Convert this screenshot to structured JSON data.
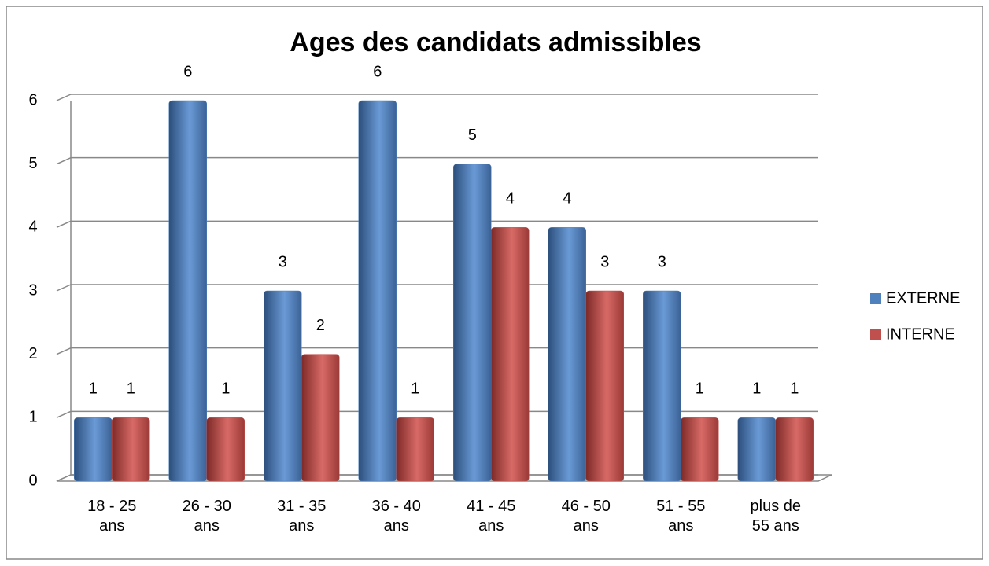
{
  "chart_data": {
    "type": "bar",
    "title": "Ages des candidats  admissibles",
    "categories": [
      "18 - 25 ans",
      "26 - 30 ans",
      "31 - 35 ans",
      "36 - 40 ans",
      "41 - 45 ans",
      "46 - 50 ans",
      "51 - 55 ans",
      "plus de 55 ans"
    ],
    "series": [
      {
        "name": "EXTERNE",
        "color": "#4f81bd",
        "values": [
          1,
          6,
          3,
          6,
          5,
          4,
          3,
          1
        ]
      },
      {
        "name": "INTERNE",
        "color": "#c0504d",
        "values": [
          1,
          1,
          2,
          1,
          4,
          3,
          1,
          1
        ]
      }
    ],
    "ylim": [
      0,
      6
    ],
    "yticks": [
      0,
      1,
      2,
      3,
      4,
      5,
      6
    ],
    "grid": true,
    "legend": "right"
  }
}
